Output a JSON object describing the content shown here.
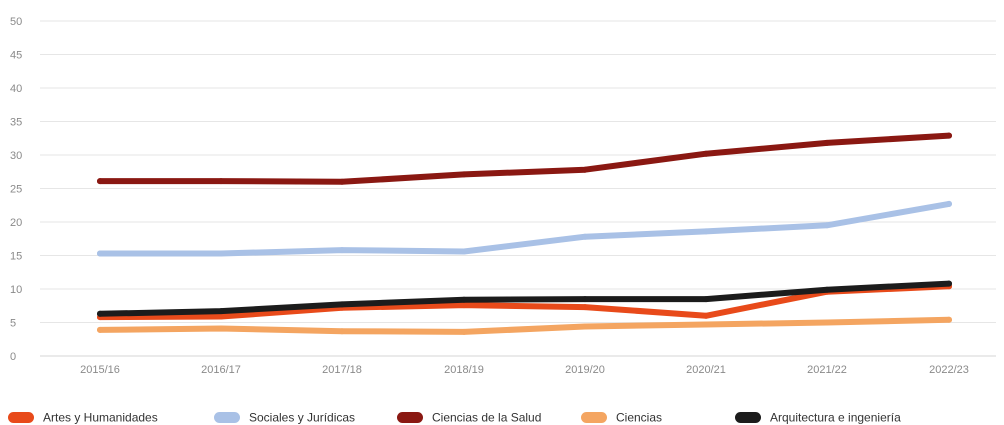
{
  "chart_data": {
    "type": "line",
    "categories": [
      "2015/16",
      "2016/17",
      "2017/18",
      "2018/19",
      "2019/20",
      "2020/21",
      "2021/22",
      "2022/23"
    ],
    "ylim": [
      0,
      50
    ],
    "yticks": [
      0,
      5,
      10,
      15,
      20,
      25,
      30,
      35,
      40,
      45,
      50
    ],
    "grid": true,
    "legend_position": "bottom",
    "series": [
      {
        "name": "Artes y Humanidades",
        "color": "#e84a1a",
        "values": [
          5.8,
          5.9,
          7.2,
          7.6,
          7.3,
          6.0,
          9.6,
          10.4
        ]
      },
      {
        "name": "Sociales y Jurídicas",
        "color": "#a9c1e6",
        "values": [
          15.3,
          15.3,
          15.8,
          15.6,
          17.8,
          18.6,
          19.5,
          22.7
        ]
      },
      {
        "name": "Ciencias de la Salud",
        "color": "#8a1812",
        "values": [
          26.1,
          26.1,
          26.0,
          27.1,
          27.8,
          30.2,
          31.8,
          32.9
        ]
      },
      {
        "name": "Ciencias",
        "color": "#f4a561",
        "values": [
          3.9,
          4.1,
          3.7,
          3.6,
          4.4,
          4.7,
          5.0,
          5.4
        ]
      },
      {
        "name": "Arquitectura e ingeniería",
        "color": "#1c1c1c",
        "values": [
          6.3,
          6.7,
          7.7,
          8.4,
          8.5,
          8.5,
          9.9,
          10.8
        ]
      }
    ]
  }
}
